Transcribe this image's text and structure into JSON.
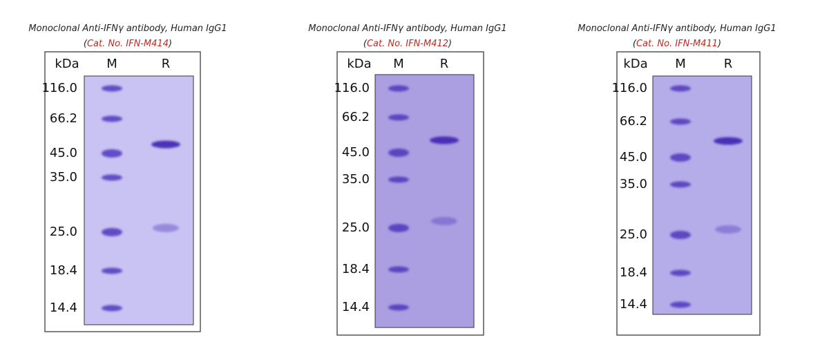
{
  "panels": [
    {
      "title": "Monoclonal Anti-IFNγ antibody, Human IgG1",
      "catalog_open": "(",
      "catalog": "Cat. No. IFN-M414",
      "catalog_close": ")",
      "kda": "kDa",
      "lane_m": "M",
      "lane_r": "R",
      "markers": [
        "116.0",
        "66.2",
        "45.0",
        "35.0",
        "25.0",
        "18.4",
        "14.4"
      ]
    },
    {
      "title": "Monoclonal Anti-IFNγ antibody, Human IgG1",
      "catalog_open": "(",
      "catalog": "Cat. No. IFN-M412",
      "catalog_close": ")",
      "kda": "kDa",
      "lane_m": "M",
      "lane_r": "R",
      "markers": [
        "116.0",
        "66.2",
        "45.0",
        "35.0",
        "25.0",
        "18.4",
        "14.4"
      ]
    },
    {
      "title": "Monoclonal Anti-IFNγ antibody, Human IgG1",
      "catalog_open": "(",
      "catalog": "Cat. No. IFN-M411",
      "catalog_close": ")",
      "kda": "kDa",
      "lane_m": "M",
      "lane_r": "R",
      "markers": [
        "116.0",
        "66.2",
        "45.0",
        "35.0",
        "25.0",
        "18.4",
        "14.4"
      ]
    }
  ]
}
